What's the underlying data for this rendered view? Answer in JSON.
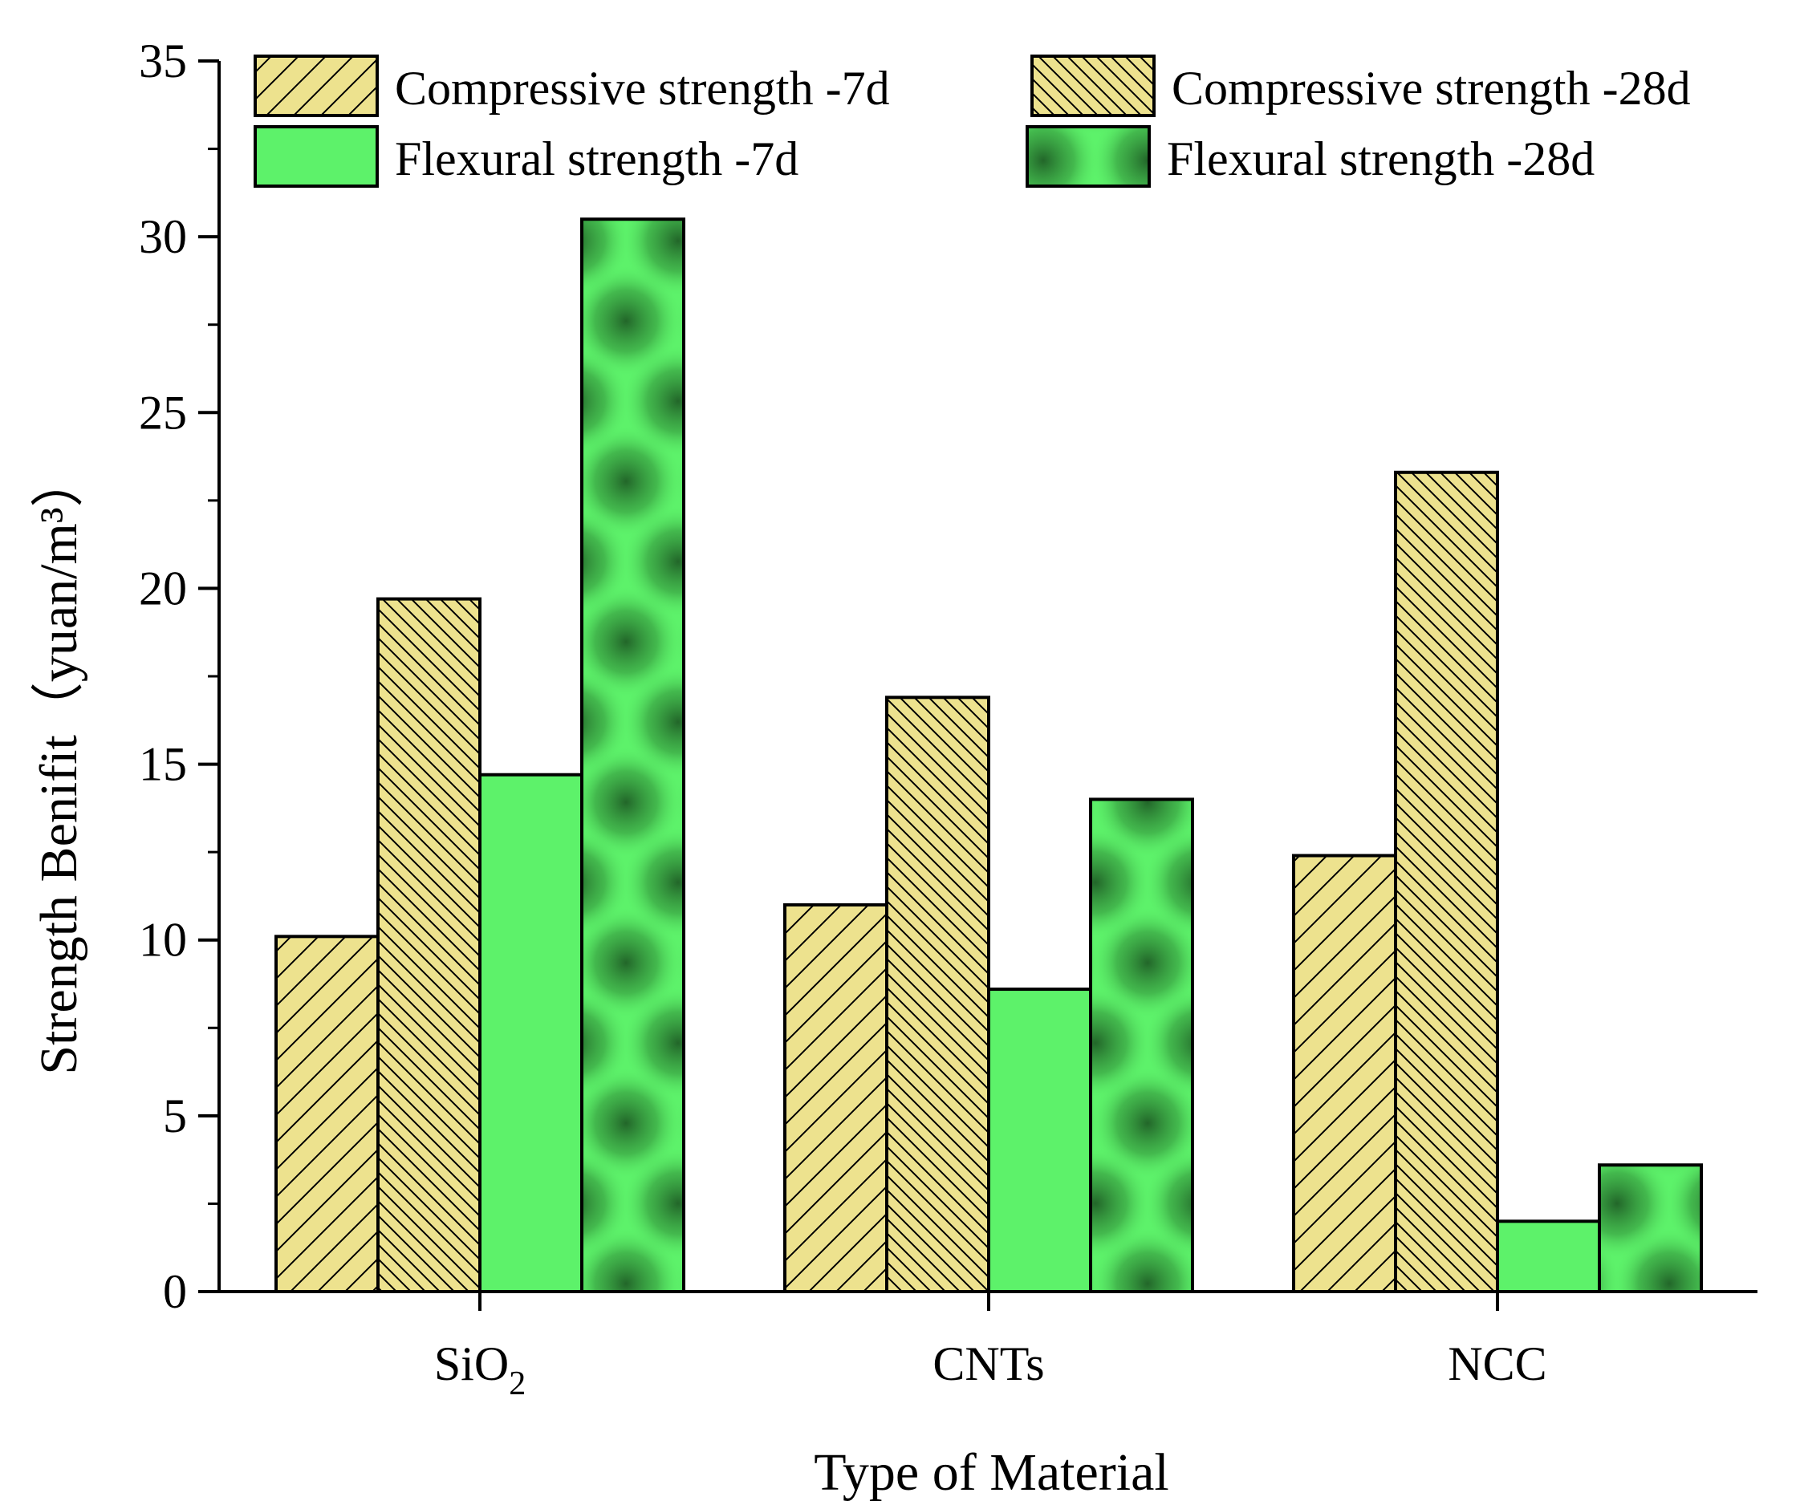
{
  "chart_data": {
    "type": "bar",
    "xlabel": "Type of Material",
    "ylabel": "Strength  Benifit（yuan/m³）",
    "ylim": [
      0,
      35
    ],
    "yticks": [
      0,
      5,
      10,
      15,
      20,
      25,
      30,
      35
    ],
    "categories": [
      {
        "base": "SiO",
        "sub": "2"
      },
      {
        "base": "CNTs",
        "sub": ""
      },
      {
        "base": "NCC",
        "sub": ""
      }
    ],
    "series": [
      {
        "name": "Compressive strength -7d",
        "values": [
          10.1,
          11.0,
          12.4
        ],
        "color": "#ede28e",
        "pattern": "hatch-forward"
      },
      {
        "name": "Compressive strength -28d",
        "values": [
          19.7,
          16.9,
          23.3
        ],
        "color": "#ede28e",
        "pattern": "hatch-back"
      },
      {
        "name": "Flexural strength -7d",
        "values": [
          14.7,
          8.6,
          2.0
        ],
        "color": "#5df26a",
        "pattern": "solid"
      },
      {
        "name": "Flexural strength -28d",
        "values": [
          30.5,
          14.0,
          3.6
        ],
        "color": "#5df26a",
        "pattern": "mottled"
      }
    ],
    "legend_position": "top",
    "grid": false
  }
}
